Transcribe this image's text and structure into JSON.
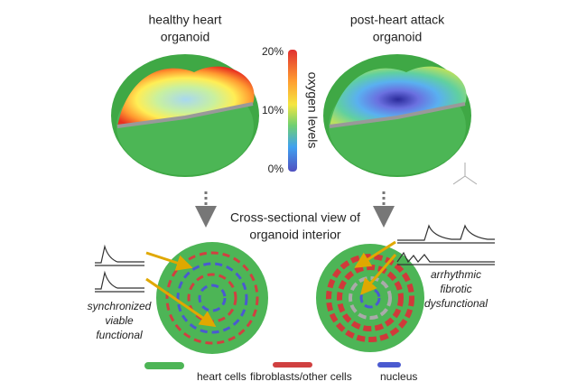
{
  "panels": [
    {
      "title_lines": [
        "healthy heart",
        "organoid"
      ],
      "annotation_lines": [
        "synchronized",
        "viable",
        "functional"
      ]
    },
    {
      "title_lines": [
        "post-heart attack",
        "organoid"
      ],
      "annotation_lines": [
        "arrhythmic",
        "fibrotic",
        "dysfunctional"
      ]
    }
  ],
  "colorbar": {
    "label": "oxygen levels",
    "tick_labels": [
      "20%",
      "10%",
      "0%"
    ]
  },
  "cross_section_title": [
    "Cross-sectional view of",
    "organoid interior"
  ],
  "legend": [
    "heart cells",
    "fibroblasts/other cells",
    "nucleus"
  ]
}
